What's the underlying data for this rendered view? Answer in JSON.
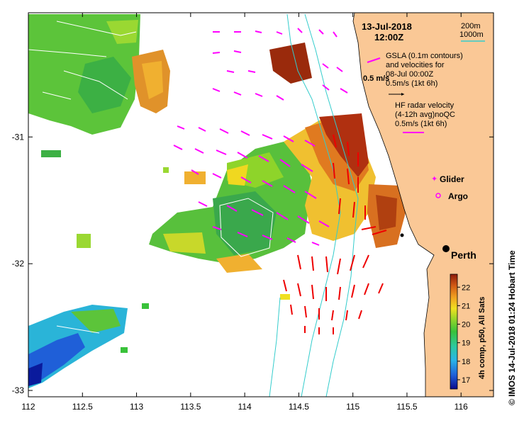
{
  "header": {
    "date": "13-Jul-2018",
    "time": "12:00Z"
  },
  "depth_legend": {
    "items": [
      "200m",
      "1000m"
    ],
    "color": "#33cccc"
  },
  "gsla_legend": {
    "lines": [
      "GSLA (0.1m contours)",
      "and velocities for",
      "08-Jul 00:00Z"
    ],
    "speed_label": "0.5 m/s",
    "arrow_label": "0.5m/s (1kt 6h)"
  },
  "radar_legend": {
    "lines": [
      "HF radar velocity",
      "(4-12h avg)noQC"
    ],
    "arrow_label": "0.5m/s (1kt 6h)"
  },
  "markers": {
    "glider": "Glider",
    "argo": "Argo",
    "glider_color": "#ff00ff",
    "argo_color": "#ff00ff"
  },
  "city": "Perth",
  "axes": {
    "x_ticks": [
      "112",
      "112.5",
      "113",
      "113.5",
      "114",
      "114.5",
      "115",
      "115.5",
      "116"
    ],
    "y_ticks": [
      "-31",
      "-32",
      "-33"
    ],
    "x_range": [
      112,
      116.3
    ],
    "y_range": [
      -33.05,
      -30.02
    ]
  },
  "colorbar": {
    "ticks": [
      "22",
      "21",
      "20",
      "19",
      "18",
      "17"
    ],
    "label": "4h comp, p50, All Sats",
    "range": [
      16.5,
      22.7
    ]
  },
  "credit": "© IMOS 14-Jul-2018 01:24 Hobart Time",
  "colors": {
    "land": "#fac896",
    "gsla_arrow": "#ff00ff",
    "radar_arrow": "#ee0000",
    "gsla_contour": "#ffffff",
    "bathymetry": "#33cccc"
  }
}
